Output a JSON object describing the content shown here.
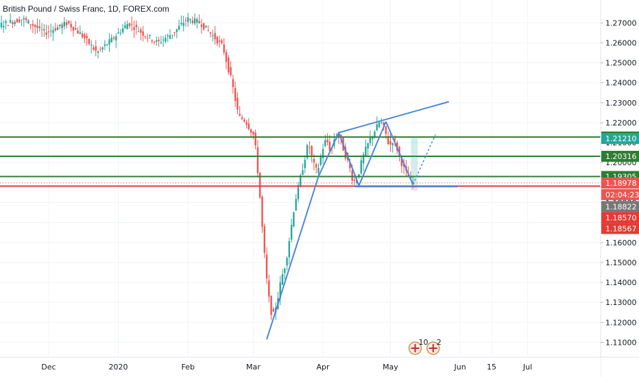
{
  "title": "British Pound / Swiss Franc, 1D, FOREX.com",
  "colors": {
    "up": "#26a69a",
    "down": "#ef5350",
    "green_line": "#2e7d32",
    "red_line": "#e53935",
    "pattern": "#4a86d8",
    "axis": "#131722",
    "grid": "#f0f3fa"
  },
  "chart_data": {
    "type": "candlestick",
    "ylim": [
      1.105,
      1.278
    ],
    "price_ticks": [
      "1.27000",
      "1.26000",
      "1.25000",
      "1.24000",
      "1.23000",
      "1.22000",
      "1.21000",
      "1.20000",
      "1.19000",
      "1.18000",
      "1.17000",
      "1.16000",
      "1.15000",
      "1.14000",
      "1.13000",
      "1.12000",
      "1.11000"
    ],
    "time_labels": [
      {
        "label": "Dec",
        "day": 46
      },
      {
        "label": "2020",
        "day": 77
      },
      {
        "label": "Feb",
        "day": 108
      },
      {
        "label": "Mar",
        "day": 137
      },
      {
        "label": "Apr",
        "day": 168
      },
      {
        "label": "May",
        "day": 198
      },
      {
        "label": "Jun",
        "day": 229
      },
      {
        "label": "15",
        "day": 243
      },
      {
        "label": "Jul",
        "day": 259
      }
    ],
    "horizontal_levels": [
      {
        "label": "1.21282",
        "value": 1.21282,
        "type": "green"
      },
      {
        "label": "1.20316",
        "value": 1.20316,
        "type": "green"
      },
      {
        "label": "1.19305",
        "value": 1.19305,
        "type": "green"
      },
      {
        "label": "1.18822",
        "value": 1.18822,
        "type": "red"
      }
    ],
    "price_tags": [
      {
        "label": "1.21282",
        "value": 1.21282,
        "bg": "#2e7d32"
      },
      {
        "label": "1.21210",
        "value": 1.2121,
        "bg": "#26a69a"
      },
      {
        "label": "1.20316",
        "value": 1.20316,
        "bg": "#2e7d32"
      },
      {
        "label": "1.19305",
        "value": 1.19305,
        "bg": "#2e7d32"
      },
      {
        "label": "1.18978",
        "value": 1.18978,
        "bg": "#ef5350"
      },
      {
        "label": "02:04:23",
        "value": 1.184,
        "bg": "#ef5350"
      },
      {
        "label": "1.18822",
        "value": 1.178,
        "bg": "#777777"
      },
      {
        "label": "1.18570",
        "value": 1.1725,
        "bg": "#e53935"
      },
      {
        "label": "1.18567",
        "value": 1.167,
        "bg": "#e53935"
      }
    ],
    "pattern_lines": [
      {
        "points": [
          [
            143,
            1.1115
          ],
          [
            166,
            1.193
          ]
        ]
      },
      {
        "points": [
          [
            166,
            1.193
          ],
          [
            175,
            1.215
          ]
        ]
      },
      {
        "points": [
          [
            175,
            1.215
          ],
          [
            184,
            1.1885
          ]
        ]
      },
      {
        "points": [
          [
            184,
            1.1885
          ],
          [
            196,
            1.2205
          ]
        ]
      },
      {
        "points": [
          [
            196,
            1.2205
          ],
          [
            208,
            1.189
          ]
        ]
      },
      {
        "points": [
          [
            175,
            1.215
          ],
          [
            224,
            1.2305
          ]
        ]
      },
      {
        "points": [
          [
            182,
            1.188
          ],
          [
            228,
            1.188
          ]
        ]
      }
    ],
    "projection": [
      [
        208,
        1.189
      ],
      [
        218,
        1.214
      ]
    ],
    "event_badges": [
      {
        "day": 209,
        "count": "10"
      },
      {
        "day": 217,
        "count": "2"
      }
    ]
  }
}
